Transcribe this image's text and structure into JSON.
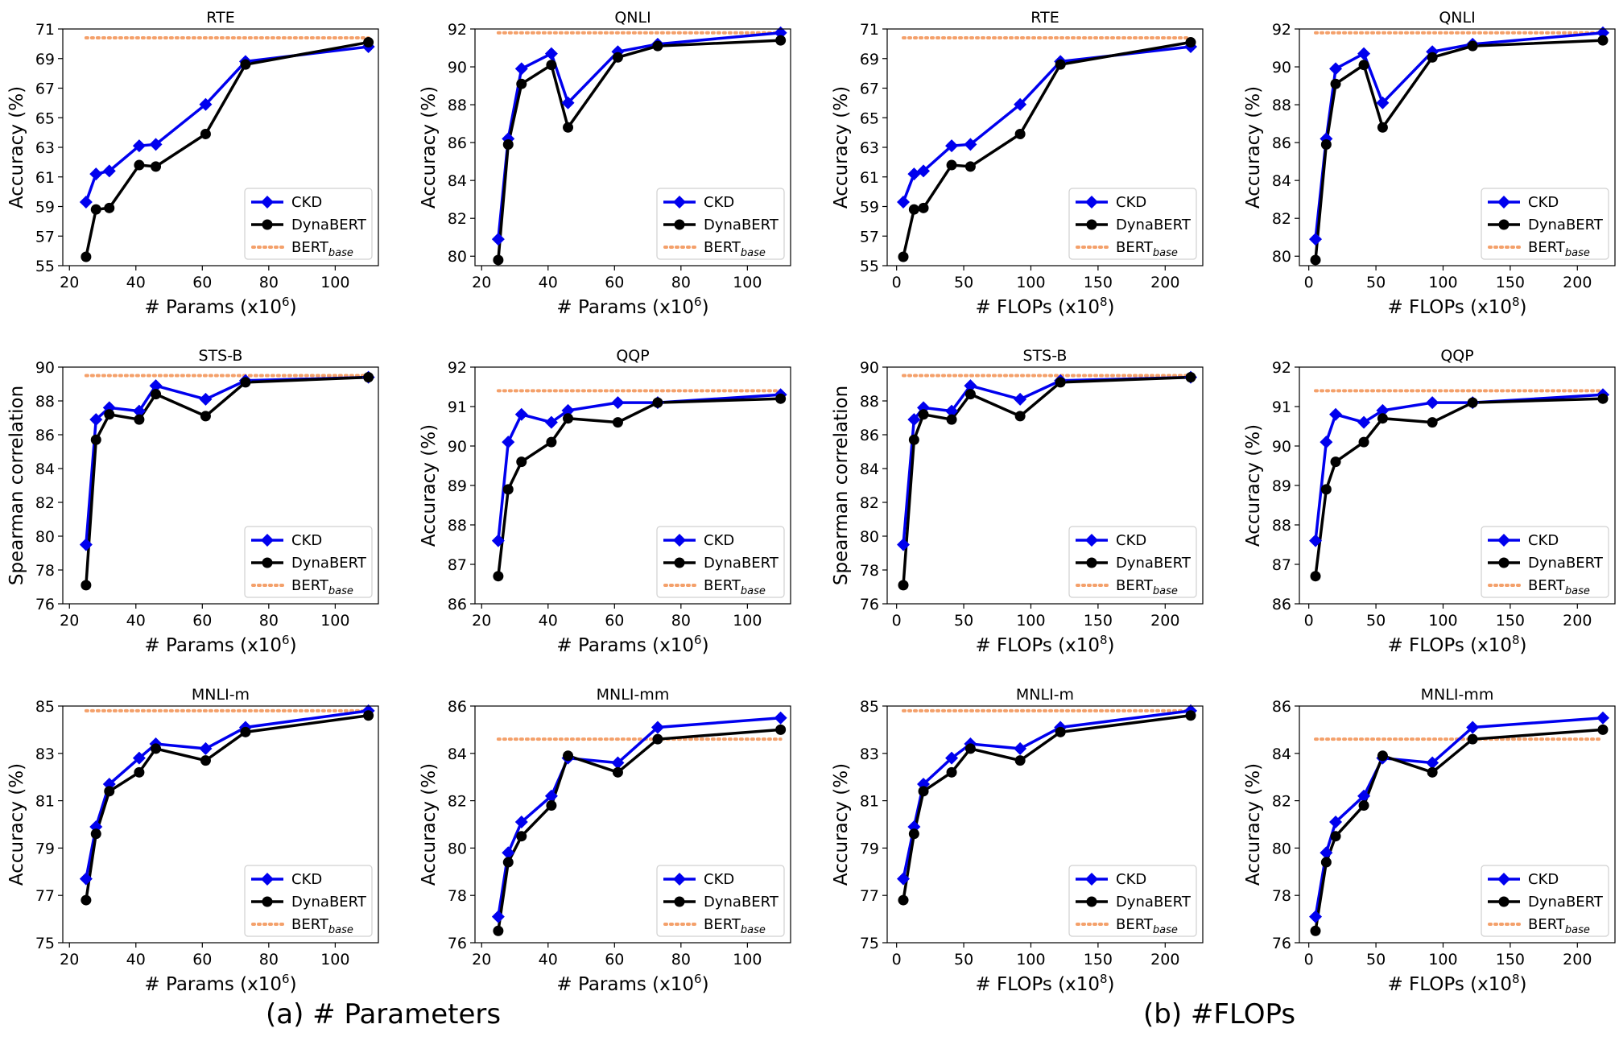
{
  "captions": {
    "a": "(a) # Parameters",
    "b": "(b) #FLOPs"
  },
  "legend": {
    "ckd": "CKD",
    "dyna": "DynaBERT",
    "bert_main": "BERT",
    "bert_sub": "base"
  },
  "colors": {
    "ckd": "#0000ee",
    "dyna": "#000000",
    "bert": "#f4a06a"
  },
  "x_axis": {
    "params": {
      "label_main": "# Params (x10",
      "label_sup": "6",
      "label_end": ")",
      "xlim": [
        18,
        113
      ],
      "ticks": [
        20,
        40,
        60,
        80,
        100
      ],
      "x": [
        25,
        28,
        32,
        41,
        46,
        61,
        73,
        110
      ]
    },
    "flops": {
      "label_main": "# FLOPs (x10",
      "label_sup": "8",
      "label_end": ")",
      "xlim": [
        -7,
        228
      ],
      "ticks": [
        0,
        50,
        100,
        150,
        200
      ],
      "x": [
        5,
        13,
        20,
        41,
        55,
        92,
        122,
        219
      ]
    }
  },
  "chart_data": [
    {
      "type": "line",
      "row": 0,
      "col": 0,
      "xaxis": "params",
      "title": "RTE",
      "ylabel": "Accuracy (%)",
      "ylim": [
        55,
        71
      ],
      "yticks": [
        55,
        57,
        59,
        61,
        63,
        65,
        67,
        69,
        71
      ],
      "bert": 70.4,
      "ckd": [
        59.3,
        61.2,
        61.4,
        63.1,
        63.2,
        65.9,
        68.8,
        69.8
      ],
      "dyna": [
        55.6,
        58.8,
        58.9,
        61.8,
        61.7,
        63.9,
        68.6,
        70.1
      ]
    },
    {
      "type": "line",
      "row": 0,
      "col": 1,
      "xaxis": "params",
      "title": "QNLI",
      "ylabel": "Accuracy (%)",
      "ylim": [
        79.5,
        92
      ],
      "yticks": [
        80,
        82,
        84,
        86,
        88,
        90,
        92
      ],
      "bert": 91.8,
      "ckd": [
        80.9,
        86.2,
        89.9,
        90.7,
        88.1,
        90.8,
        91.2,
        91.8
      ],
      "dyna": [
        79.8,
        85.9,
        89.1,
        90.1,
        86.8,
        90.5,
        91.1,
        91.4
      ]
    },
    {
      "type": "line",
      "row": 0,
      "col": 2,
      "xaxis": "flops",
      "title": "RTE",
      "ylabel": "Accuracy (%)",
      "ylim": [
        55,
        71
      ],
      "yticks": [
        55,
        57,
        59,
        61,
        63,
        65,
        67,
        69,
        71
      ],
      "bert": 70.4,
      "ckd": [
        59.3,
        61.2,
        61.4,
        63.1,
        63.2,
        65.9,
        68.8,
        69.8
      ],
      "dyna": [
        55.6,
        58.8,
        58.9,
        61.8,
        61.7,
        63.9,
        68.6,
        70.1
      ]
    },
    {
      "type": "line",
      "row": 0,
      "col": 3,
      "xaxis": "flops",
      "title": "QNLI",
      "ylabel": "Accuracy (%)",
      "ylim": [
        79.5,
        92
      ],
      "yticks": [
        80,
        82,
        84,
        86,
        88,
        90,
        92
      ],
      "bert": 91.8,
      "ckd": [
        80.9,
        86.2,
        89.9,
        90.7,
        88.1,
        90.8,
        91.2,
        91.8
      ],
      "dyna": [
        79.8,
        85.9,
        89.1,
        90.1,
        86.8,
        90.5,
        91.1,
        91.4
      ]
    },
    {
      "type": "line",
      "row": 1,
      "col": 0,
      "xaxis": "params",
      "title": "STS-B",
      "ylabel": "Spearman correlation",
      "ylim": [
        76,
        90
      ],
      "yticks": [
        76,
        78,
        80,
        82,
        84,
        86,
        88,
        90
      ],
      "bert": 89.5,
      "ckd": [
        79.5,
        86.9,
        87.6,
        87.4,
        88.9,
        88.1,
        89.2,
        89.4
      ],
      "dyna": [
        77.1,
        85.7,
        87.2,
        86.9,
        88.4,
        87.1,
        89.1,
        89.4
      ]
    },
    {
      "type": "line",
      "row": 1,
      "col": 1,
      "xaxis": "params",
      "title": "QQP",
      "ylabel": "Accuracy (%)",
      "ylim": [
        86,
        92
      ],
      "yticks": [
        86,
        87,
        88,
        89,
        90,
        91,
        92
      ],
      "bert": 91.4,
      "ckd": [
        87.6,
        90.1,
        90.8,
        90.6,
        90.9,
        91.1,
        91.1,
        91.3
      ],
      "dyna": [
        86.7,
        88.9,
        89.6,
        90.1,
        90.7,
        90.6,
        91.1,
        91.2
      ]
    },
    {
      "type": "line",
      "row": 1,
      "col": 2,
      "xaxis": "flops",
      "title": "STS-B",
      "ylabel": "Spearman correlation",
      "ylim": [
        76,
        90
      ],
      "yticks": [
        76,
        78,
        80,
        82,
        84,
        86,
        88,
        90
      ],
      "bert": 89.5,
      "ckd": [
        79.5,
        86.9,
        87.6,
        87.4,
        88.9,
        88.1,
        89.2,
        89.4
      ],
      "dyna": [
        77.1,
        85.7,
        87.2,
        86.9,
        88.4,
        87.1,
        89.1,
        89.4
      ]
    },
    {
      "type": "line",
      "row": 1,
      "col": 3,
      "xaxis": "flops",
      "title": "QQP",
      "ylabel": "Accuracy (%)",
      "ylim": [
        86,
        92
      ],
      "yticks": [
        86,
        87,
        88,
        89,
        90,
        91,
        92
      ],
      "bert": 91.4,
      "ckd": [
        87.6,
        90.1,
        90.8,
        90.6,
        90.9,
        91.1,
        91.1,
        91.3
      ],
      "dyna": [
        86.7,
        88.9,
        89.6,
        90.1,
        90.7,
        90.6,
        91.1,
        91.2
      ]
    },
    {
      "type": "line",
      "row": 2,
      "col": 0,
      "xaxis": "params",
      "title": "MNLI-m",
      "ylabel": "Accuracy (%)",
      "ylim": [
        75,
        85
      ],
      "yticks": [
        75,
        77,
        79,
        81,
        83,
        85
      ],
      "bert": 84.8,
      "ckd": [
        77.7,
        79.9,
        81.7,
        82.8,
        83.4,
        83.2,
        84.1,
        84.8
      ],
      "dyna": [
        76.8,
        79.6,
        81.4,
        82.2,
        83.2,
        82.7,
        83.9,
        84.6
      ]
    },
    {
      "type": "line",
      "row": 2,
      "col": 1,
      "xaxis": "params",
      "title": "MNLI-mm",
      "ylabel": "Accuracy (%)",
      "ylim": [
        76,
        86
      ],
      "yticks": [
        76,
        78,
        80,
        82,
        84,
        86
      ],
      "bert": 84.6,
      "ckd": [
        77.1,
        79.8,
        81.1,
        82.2,
        83.8,
        83.6,
        85.1,
        85.5
      ],
      "dyna": [
        76.5,
        79.4,
        80.5,
        81.8,
        83.9,
        83.2,
        84.6,
        85.0
      ]
    },
    {
      "type": "line",
      "row": 2,
      "col": 2,
      "xaxis": "flops",
      "title": "MNLI-m",
      "ylabel": "Accuracy (%)",
      "ylim": [
        75,
        85
      ],
      "yticks": [
        75,
        77,
        79,
        81,
        83,
        85
      ],
      "bert": 84.8,
      "ckd": [
        77.7,
        79.9,
        81.7,
        82.8,
        83.4,
        83.2,
        84.1,
        84.8
      ],
      "dyna": [
        76.8,
        79.6,
        81.4,
        82.2,
        83.2,
        82.7,
        83.9,
        84.6
      ]
    },
    {
      "type": "line",
      "row": 2,
      "col": 3,
      "xaxis": "flops",
      "title": "MNLI-mm",
      "ylabel": "Accuracy (%)",
      "ylim": [
        76,
        86
      ],
      "yticks": [
        76,
        78,
        80,
        82,
        84,
        86
      ],
      "bert": 84.6,
      "ckd": [
        77.1,
        79.8,
        81.1,
        82.2,
        83.8,
        83.6,
        85.1,
        85.5
      ],
      "dyna": [
        76.5,
        79.4,
        80.5,
        81.8,
        83.9,
        83.2,
        84.6,
        85.0
      ]
    }
  ]
}
